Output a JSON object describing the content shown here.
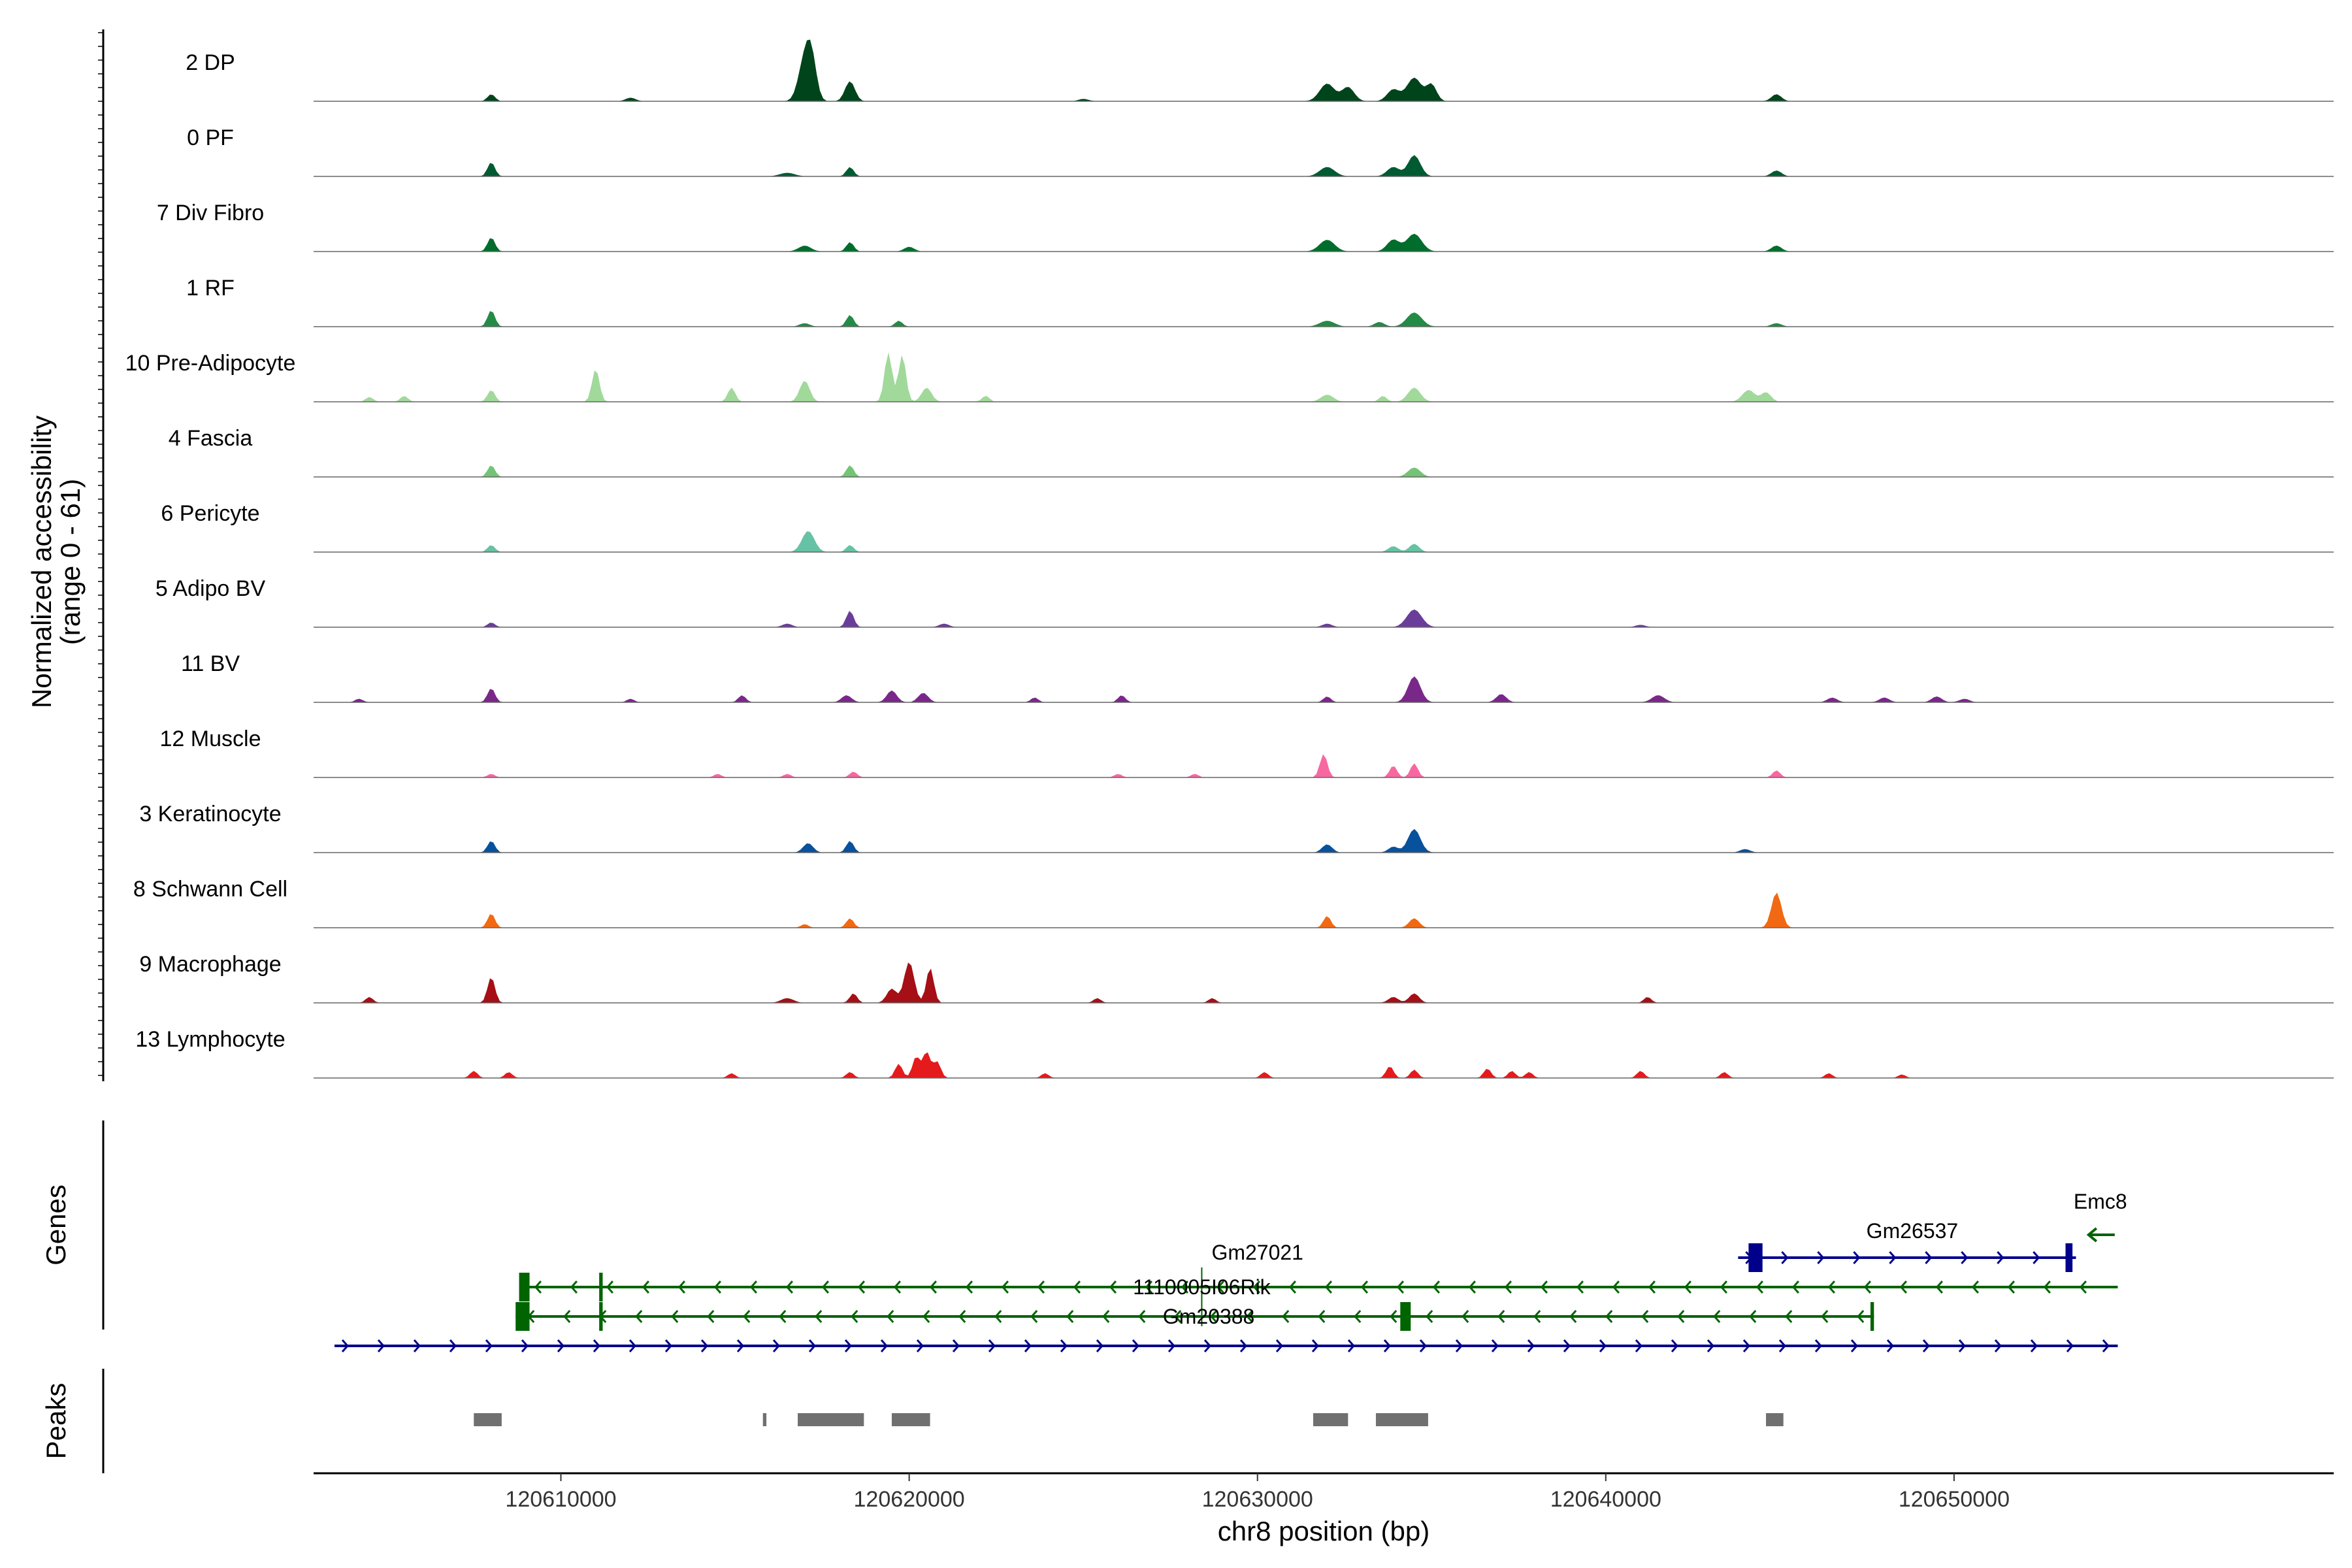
{
  "chart_data": {
    "type": "area",
    "title": "",
    "xlabel": "chr8 position (bp)",
    "ylabel_line1": "Normalized accessibility",
    "ylabel_line2": "(range 0 - 61)",
    "y_range": [
      0,
      61
    ],
    "x_range": [
      120602900,
      120660900
    ],
    "x_ticks": [
      120610000,
      120620000,
      120630000,
      120640000,
      120650000
    ],
    "x_tick_labels": [
      "120610000",
      "120620000",
      "120630000",
      "120640000",
      "120650000"
    ],
    "genes_panel_label": "Genes",
    "peaks_panel_label": "Peaks",
    "tracks": [
      {
        "name": "2 DP",
        "color": "#00441b",
        "noise": 0.05,
        "peaks": [
          [
            120608000,
            6,
            150
          ],
          [
            120617000,
            35,
            250
          ],
          [
            120617200,
            30,
            200
          ],
          [
            120618300,
            17,
            200
          ],
          [
            120632000,
            15,
            300
          ],
          [
            120632600,
            12,
            250
          ],
          [
            120633900,
            10,
            250
          ],
          [
            120634500,
            20,
            300
          ],
          [
            120635000,
            14,
            200
          ],
          [
            120644900,
            6,
            200
          ],
          [
            120612000,
            3,
            200
          ],
          [
            120625000,
            2,
            200
          ]
        ]
      },
      {
        "name": "0 PF",
        "color": "#005a32",
        "noise": 0.04,
        "peaks": [
          [
            120608000,
            12,
            150
          ],
          [
            120618300,
            8,
            150
          ],
          [
            120632000,
            8,
            300
          ],
          [
            120633900,
            8,
            250
          ],
          [
            120634500,
            18,
            250
          ],
          [
            120644900,
            5,
            200
          ],
          [
            120616500,
            3,
            300
          ]
        ]
      },
      {
        "name": "7 Div Fibro",
        "color": "#006d2c",
        "noise": 0.06,
        "peaks": [
          [
            120608000,
            12,
            150
          ],
          [
            120618300,
            8,
            150
          ],
          [
            120632000,
            10,
            300
          ],
          [
            120634500,
            15,
            300
          ],
          [
            120633900,
            10,
            250
          ],
          [
            120644900,
            5,
            200
          ],
          [
            120617000,
            5,
            250
          ],
          [
            120620000,
            4,
            200
          ]
        ]
      },
      {
        "name": "1 RF",
        "color": "#238b45",
        "noise": 0.03,
        "peaks": [
          [
            120608000,
            14,
            150
          ],
          [
            120618300,
            10,
            150
          ],
          [
            120619700,
            5,
            150
          ],
          [
            120632000,
            5,
            300
          ],
          [
            120634500,
            12,
            300
          ],
          [
            120633500,
            4,
            200
          ],
          [
            120644900,
            3,
            200
          ],
          [
            120617000,
            3,
            200
          ]
        ]
      },
      {
        "name": "10 Pre-Adipocyte",
        "color": "#a1d99b",
        "noise": 0.07,
        "peaks": [
          [
            120611000,
            28,
            150
          ],
          [
            120619400,
            42,
            150
          ],
          [
            120619800,
            40,
            150
          ],
          [
            120617000,
            18,
            200
          ],
          [
            120608000,
            10,
            150
          ],
          [
            120620500,
            12,
            200
          ],
          [
            120614900,
            12,
            150
          ],
          [
            120634500,
            12,
            250
          ],
          [
            120644100,
            10,
            250
          ],
          [
            120644600,
            8,
            200
          ],
          [
            120632000,
            6,
            250
          ],
          [
            120604500,
            4,
            150
          ],
          [
            120605500,
            5,
            150
          ],
          [
            120622200,
            5,
            150
          ],
          [
            120633600,
            5,
            150
          ]
        ]
      },
      {
        "name": "4 Fascia",
        "color": "#74c476",
        "noise": 0.02,
        "peaks": [
          [
            120608000,
            10,
            150
          ],
          [
            120618300,
            10,
            150
          ],
          [
            120634500,
            8,
            250
          ]
        ]
      },
      {
        "name": "6 Pericyte",
        "color": "#66c2a4",
        "noise": 0.02,
        "peaks": [
          [
            120617100,
            18,
            250
          ],
          [
            120608000,
            6,
            150
          ],
          [
            120618300,
            6,
            150
          ],
          [
            120634500,
            7,
            200
          ],
          [
            120633900,
            5,
            200
          ]
        ]
      },
      {
        "name": "5 Adipo BV",
        "color": "#6a3d9a",
        "noise": 0.04,
        "peaks": [
          [
            120618300,
            14,
            150
          ],
          [
            120634500,
            15,
            300
          ],
          [
            120608000,
            4,
            150
          ],
          [
            120616500,
            3,
            200
          ],
          [
            120621000,
            3,
            200
          ],
          [
            120632000,
            3,
            200
          ],
          [
            120641000,
            2,
            200
          ]
        ]
      },
      {
        "name": "11 BV",
        "color": "#7a278a",
        "noise": 0.08,
        "peaks": [
          [
            120634500,
            22,
            250
          ],
          [
            120608000,
            12,
            150
          ],
          [
            120619500,
            10,
            200
          ],
          [
            120620400,
            8,
            200
          ],
          [
            120618200,
            6,
            200
          ],
          [
            120615200,
            6,
            150
          ],
          [
            120632000,
            5,
            150
          ],
          [
            120637000,
            7,
            200
          ],
          [
            120641500,
            6,
            250
          ],
          [
            120646500,
            4,
            200
          ],
          [
            120648000,
            4,
            200
          ],
          [
            120649500,
            5,
            200
          ],
          [
            120650300,
            3,
            200
          ],
          [
            120604200,
            3,
            150
          ],
          [
            120612000,
            3,
            150
          ],
          [
            120626100,
            6,
            150
          ],
          [
            120623600,
            4,
            150
          ]
        ]
      },
      {
        "name": "12 Muscle",
        "color": "#f768a1",
        "noise": 0.05,
        "peaks": [
          [
            120631900,
            20,
            150
          ],
          [
            120634500,
            12,
            150
          ],
          [
            120633900,
            10,
            150
          ],
          [
            120644900,
            6,
            150
          ],
          [
            120618400,
            5,
            150
          ],
          [
            120608000,
            3,
            150
          ],
          [
            120614500,
            3,
            150
          ],
          [
            120616500,
            3,
            150
          ],
          [
            120626000,
            3,
            150
          ],
          [
            120628200,
            3,
            150
          ]
        ]
      },
      {
        "name": "3 Keratinocyte",
        "color": "#08519c",
        "noise": 0.05,
        "peaks": [
          [
            120634500,
            20,
            250
          ],
          [
            120608000,
            10,
            150
          ],
          [
            120618300,
            10,
            150
          ],
          [
            120617100,
            8,
            200
          ],
          [
            120632000,
            7,
            200
          ],
          [
            120633900,
            5,
            200
          ],
          [
            120644000,
            3,
            200
          ]
        ]
      },
      {
        "name": "8 Schwann Cell",
        "color": "#f16913",
        "noise": 0.03,
        "peaks": [
          [
            120644900,
            30,
            200
          ],
          [
            120608000,
            12,
            150
          ],
          [
            120618300,
            8,
            150
          ],
          [
            120632000,
            10,
            150
          ],
          [
            120634500,
            8,
            200
          ],
          [
            120617000,
            3,
            150
          ]
        ]
      },
      {
        "name": "9 Macrophage",
        "color": "#a50f15",
        "noise": 0.05,
        "peaks": [
          [
            120620000,
            35,
            200
          ],
          [
            120620600,
            30,
            150
          ],
          [
            120608000,
            22,
            150
          ],
          [
            120619500,
            12,
            200
          ],
          [
            120618400,
            8,
            150
          ],
          [
            120616500,
            4,
            250
          ],
          [
            120634500,
            8,
            200
          ],
          [
            120633900,
            5,
            200
          ],
          [
            120604500,
            5,
            150
          ],
          [
            120641200,
            5,
            150
          ],
          [
            120625400,
            4,
            150
          ],
          [
            120628700,
            4,
            150
          ]
        ]
      },
      {
        "name": "13 Lymphocyte",
        "color": "#e41a1c",
        "noise": 0.04,
        "peaks": [
          [
            120620500,
            22,
            150
          ],
          [
            120620200,
            18,
            150
          ],
          [
            120619700,
            12,
            150
          ],
          [
            120620800,
            14,
            150
          ],
          [
            120607500,
            6,
            150
          ],
          [
            120608500,
            5,
            150
          ],
          [
            120633800,
            10,
            150
          ],
          [
            120634500,
            7,
            150
          ],
          [
            120636600,
            8,
            150
          ],
          [
            120637300,
            6,
            150
          ],
          [
            120637800,
            5,
            150
          ],
          [
            120641000,
            6,
            150
          ],
          [
            120643400,
            5,
            150
          ],
          [
            120630200,
            5,
            150
          ],
          [
            120623900,
            4,
            150
          ],
          [
            120614900,
            4,
            150
          ],
          [
            120618300,
            5,
            150
          ],
          [
            120648500,
            3,
            150
          ],
          [
            120646400,
            4,
            150
          ]
        ]
      }
    ],
    "genes": [
      {
        "name": "Gm27021",
        "strand": "-",
        "color": "#006400",
        "start": 120608900,
        "end": 120654700,
        "row": 1,
        "label_pos": 120630000,
        "exons": [
          [
            120608800,
            120609100
          ],
          [
            120611100,
            120611200
          ]
        ]
      },
      {
        "name": "1110005I06Rik",
        "strand": "-",
        "color": "#006400",
        "start": 120628400,
        "end": 120628500,
        "row": 1,
        "label_pos": 120628400,
        "exons": []
      },
      {
        "name": "Gm20388",
        "strand": "-",
        "color": "#006400",
        "start": 120608700,
        "end": 120647700,
        "row": 2,
        "label_pos": 120628600,
        "exons": [
          [
            120608700,
            120609100
          ],
          [
            120611100,
            120611200
          ],
          [
            120634100,
            120634400
          ],
          [
            120647600,
            120647700
          ]
        ]
      },
      {
        "name": "Gm26537",
        "strand": "+",
        "color": "#00008b",
        "start": 120643800,
        "end": 120653500,
        "row": 0,
        "label_pos": 120648800,
        "exons": [
          [
            120644100,
            120644500
          ],
          [
            120653200,
            120653400
          ]
        ]
      },
      {
        "name": "Emc8",
        "strand": "-",
        "color": "#006400",
        "start": 120653800,
        "end": 120654700,
        "row": -1,
        "label_pos": 120654200,
        "exons": []
      },
      {
        "name": "",
        "strand": "+",
        "color": "#00008b",
        "start": 120603500,
        "end": 120654700,
        "row": 3,
        "label_pos": 120628000,
        "exons": []
      }
    ],
    "peaks": [
      [
        120607500,
        120608300
      ],
      [
        120615800,
        120615900
      ],
      [
        120616800,
        120618700
      ],
      [
        120619500,
        120620600
      ],
      [
        120631600,
        120632600
      ],
      [
        120633400,
        120634900
      ],
      [
        120644600,
        120645100
      ]
    ]
  }
}
